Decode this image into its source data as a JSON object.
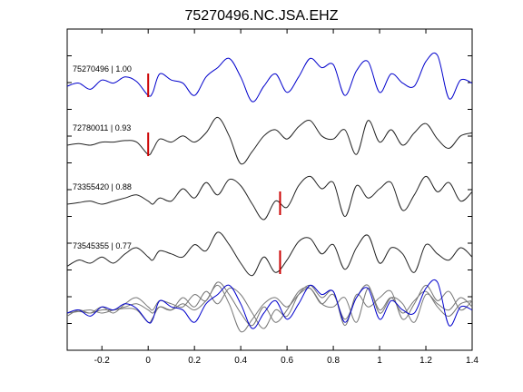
{
  "chart_data": {
    "type": "line",
    "title": "75270496.NC.JSA.EHZ",
    "xlabel": "",
    "ylabel": "",
    "xlim": [
      -0.35,
      1.4
    ],
    "xticks": [
      -0.2,
      0,
      0.2,
      0.4,
      0.6,
      0.8,
      1,
      1.2,
      1.4
    ],
    "xtick_labels": [
      "-0.2",
      "0",
      "0.2",
      "0.4",
      "0.6",
      "0.8",
      "1",
      "1.2",
      "1.4"
    ],
    "grid": false,
    "colors": {
      "reference": "#0000cc",
      "trace": "#222222",
      "overlay": "#777777",
      "pick": "#cc0000"
    },
    "series": [
      {
        "name": "75270496 | 1.00",
        "pick_time": 0.0,
        "color": "#0000cc",
        "x": [
          -0.35,
          -0.3,
          -0.25,
          -0.2,
          -0.15,
          -0.1,
          -0.05,
          0.0,
          0.02,
          0.05,
          0.1,
          0.15,
          0.2,
          0.25,
          0.3,
          0.35,
          0.4,
          0.45,
          0.5,
          0.55,
          0.6,
          0.65,
          0.7,
          0.75,
          0.8,
          0.85,
          0.9,
          0.95,
          1.0,
          1.05,
          1.1,
          1.15,
          1.2,
          1.25,
          1.3,
          1.35,
          1.4
        ],
        "y": [
          0.0,
          0.1,
          -0.1,
          0.2,
          0.1,
          0.3,
          0.15,
          -0.3,
          -0.2,
          0.4,
          0.2,
          0.1,
          -0.3,
          0.3,
          0.6,
          0.9,
          0.3,
          -0.5,
          0.0,
          0.4,
          -0.2,
          0.3,
          0.9,
          0.6,
          0.7,
          -0.3,
          0.5,
          0.8,
          -0.2,
          0.4,
          0.1,
          0.0,
          0.8,
          1.0,
          -0.4,
          0.2,
          0.1
        ]
      },
      {
        "name": "72780011 | 0.93",
        "pick_time": 0.0,
        "color": "#222222",
        "x": [
          -0.35,
          -0.3,
          -0.25,
          -0.2,
          -0.15,
          -0.1,
          -0.05,
          0.0,
          0.02,
          0.05,
          0.1,
          0.15,
          0.2,
          0.25,
          0.3,
          0.35,
          0.4,
          0.45,
          0.5,
          0.55,
          0.6,
          0.65,
          0.7,
          0.75,
          0.8,
          0.85,
          0.9,
          0.95,
          1.0,
          1.05,
          1.1,
          1.15,
          1.2,
          1.25,
          1.3,
          1.35,
          1.4
        ],
        "y": [
          0.0,
          0.05,
          0.0,
          0.1,
          0.1,
          0.15,
          0.1,
          -0.3,
          -0.15,
          0.2,
          0.1,
          0.3,
          0.1,
          0.4,
          0.9,
          0.3,
          -0.6,
          -0.2,
          0.3,
          0.5,
          0.2,
          0.6,
          0.8,
          0.3,
          0.2,
          0.5,
          -0.3,
          0.8,
          0.1,
          0.5,
          0.0,
          0.4,
          0.7,
          0.2,
          -0.1,
          0.3,
          0.4
        ]
      },
      {
        "name": "73355420 | 0.88",
        "pick_time": 0.57,
        "color": "#222222",
        "x": [
          -0.35,
          -0.3,
          -0.25,
          -0.2,
          -0.15,
          -0.1,
          -0.05,
          0.0,
          0.02,
          0.05,
          0.1,
          0.15,
          0.2,
          0.25,
          0.3,
          0.35,
          0.4,
          0.45,
          0.5,
          0.55,
          0.6,
          0.65,
          0.7,
          0.75,
          0.8,
          0.85,
          0.9,
          0.95,
          1.0,
          1.05,
          1.1,
          1.15,
          1.2,
          1.25,
          1.3,
          1.35,
          1.4
        ],
        "y": [
          0.0,
          0.05,
          0.1,
          0.0,
          0.1,
          0.2,
          0.3,
          0.1,
          0.0,
          0.2,
          0.1,
          0.5,
          0.2,
          0.7,
          0.3,
          0.8,
          0.6,
          0.0,
          -0.5,
          0.1,
          -0.1,
          0.6,
          0.9,
          0.5,
          0.7,
          -0.4,
          0.6,
          0.2,
          0.5,
          0.7,
          -0.2,
          0.3,
          0.9,
          0.4,
          0.7,
          0.1,
          0.4
        ]
      },
      {
        "name": "73545355 | 0.77",
        "pick_time": 0.57,
        "color": "#222222",
        "x": [
          -0.35,
          -0.3,
          -0.25,
          -0.2,
          -0.15,
          -0.1,
          -0.05,
          0.0,
          0.02,
          0.05,
          0.1,
          0.15,
          0.2,
          0.25,
          0.3,
          0.35,
          0.4,
          0.45,
          0.5,
          0.55,
          0.6,
          0.65,
          0.7,
          0.75,
          0.8,
          0.85,
          0.9,
          0.95,
          1.0,
          1.05,
          1.1,
          1.15,
          1.2,
          1.25,
          1.3,
          1.35,
          1.4
        ],
        "y": [
          -0.1,
          0.1,
          0.0,
          0.2,
          0.0,
          0.3,
          0.5,
          0.2,
          0.1,
          0.4,
          0.3,
          0.2,
          0.6,
          0.4,
          1.0,
          0.6,
          0.0,
          -0.4,
          0.2,
          -0.3,
          0.1,
          0.7,
          0.8,
          0.3,
          0.6,
          -0.2,
          0.5,
          0.9,
          0.0,
          0.5,
          0.3,
          -0.3,
          0.6,
          0.3,
          0.1,
          0.5,
          0.2
        ]
      }
    ],
    "stack_overlay": true,
    "overlay_colors": [
      "#0000cc",
      "#777777",
      "#777777",
      "#777777"
    ]
  }
}
